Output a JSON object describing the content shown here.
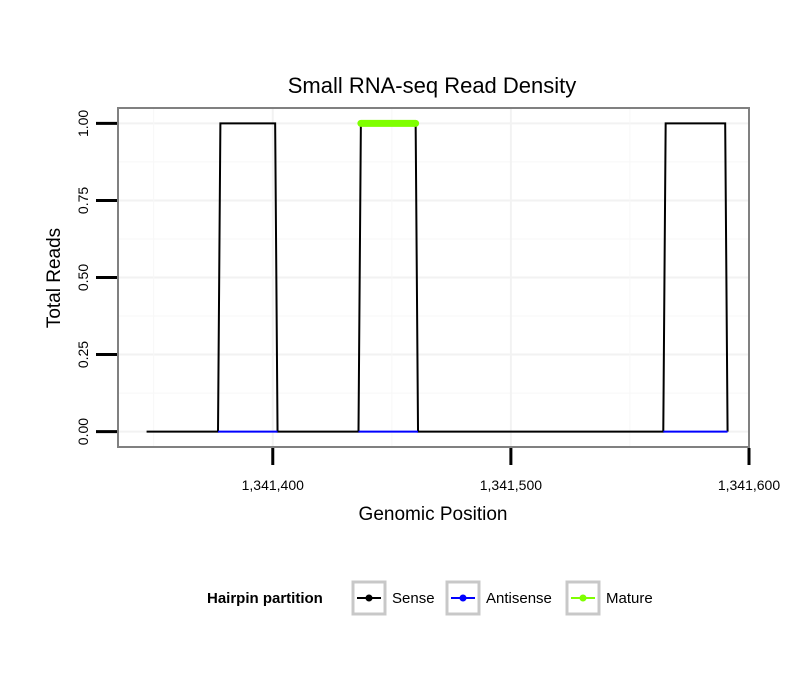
{
  "chart_data": {
    "type": "line",
    "title": "Small RNA-seq Read Density",
    "xlabel": "Genomic Position",
    "ylabel": "Total Reads",
    "xlim": [
      1341335,
      1341600
    ],
    "ylim": [
      -0.05,
      1.05
    ],
    "x_ticks": [
      1341400,
      1341500,
      1341600
    ],
    "x_tick_labels": [
      "1,341,400",
      "1,341,500",
      "1,341,600"
    ],
    "y_ticks": [
      0,
      0.25,
      0.5,
      0.75,
      1
    ],
    "y_tick_labels": [
      "0.00",
      "0.25",
      "0.50",
      "0.75",
      "1.00"
    ],
    "grid": true,
    "series": [
      {
        "name": "Sense",
        "color": "#000000",
        "x": [
          1341347,
          1341377,
          1341378,
          1341401,
          1341402,
          1341436,
          1341437,
          1341460,
          1341461,
          1341564,
          1341565,
          1341590,
          1341591
        ],
        "values": [
          0,
          0,
          1,
          1,
          0,
          0,
          1,
          1,
          0,
          0,
          1,
          1,
          0
        ]
      },
      {
        "name": "Antisense",
        "color": "#0000FF",
        "x": [
          1341377,
          1341402,
          1341436,
          1341461,
          1341564,
          1341591
        ],
        "values": [
          0,
          0,
          0,
          0,
          0,
          0
        ],
        "segments": [
          [
            0,
            1
          ],
          [
            2,
            3
          ],
          [
            4,
            5
          ]
        ]
      },
      {
        "name": "Mature",
        "color": "#7FFF00",
        "x": [
          1341437,
          1341460
        ],
        "values": [
          1,
          1
        ]
      }
    ],
    "legend": {
      "title": "Hairpin partition",
      "position": "bottom",
      "entries": [
        "Sense",
        "Antisense",
        "Mature"
      ]
    }
  }
}
